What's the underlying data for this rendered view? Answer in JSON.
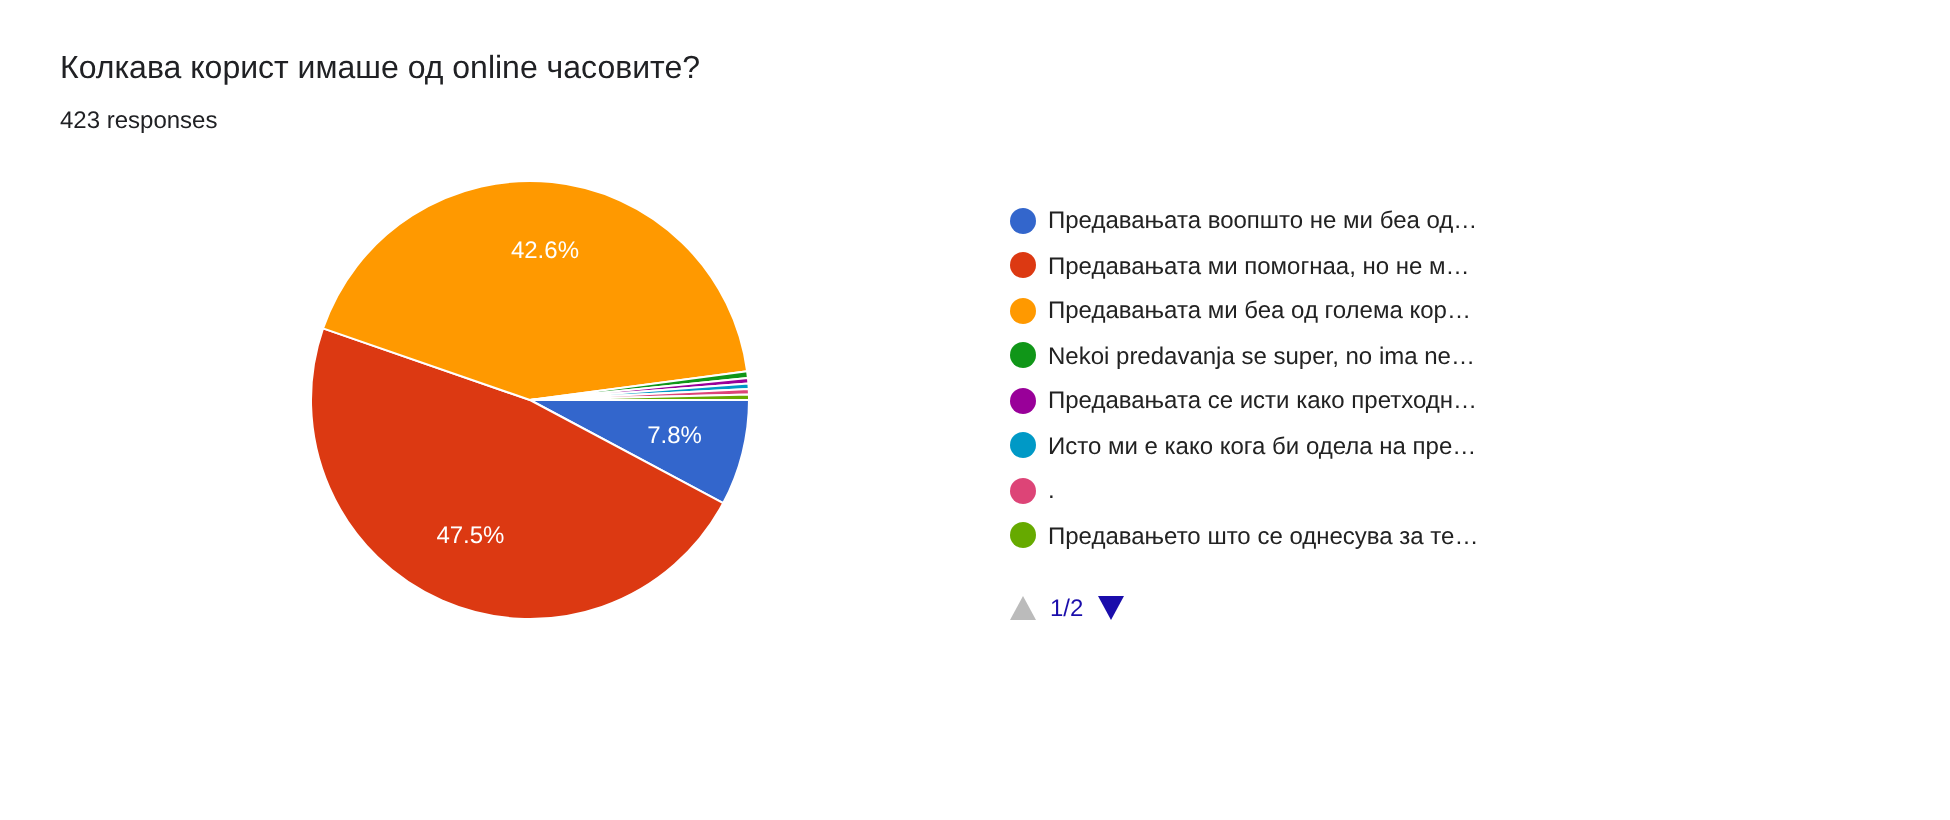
{
  "chart_data": {
    "type": "pie",
    "title": "Колкава корист имаше од online часовите?",
    "subtitle": "423 responses",
    "categories": [
      "Предавањата воопшто не ми беа од…",
      "Предавањата ми помогнаа, но не м…",
      "Предавањата ми беа од голема кор…",
      "Nekoi predavanja se super, no ima ne…",
      "Предавањата се исти како претходн…",
      "Исто ми е како кога би одела на пре…",
      ".",
      "Предавањето што се однесува за те…"
    ],
    "values": [
      7.8,
      47.5,
      42.6,
      0.5,
      0.4,
      0.4,
      0.4,
      0.4
    ],
    "colors": [
      "#3366cc",
      "#dc3912",
      "#ff9900",
      "#109618",
      "#990099",
      "#0099c6",
      "#dd4477",
      "#66aa00"
    ],
    "value_labels": [
      "7.8%",
      "47.5%",
      "42.6%",
      null,
      null,
      null,
      null,
      null
    ],
    "legend": "right",
    "annotations": [
      "1/2"
    ]
  }
}
